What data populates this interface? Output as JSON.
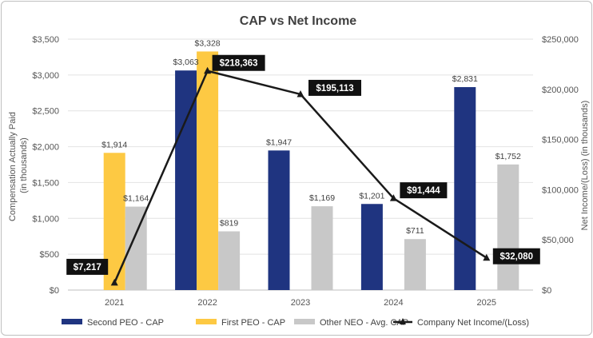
{
  "chart_data": {
    "type": "bar",
    "title": "CAP vs Net Income",
    "categories": [
      "2021",
      "2022",
      "2023",
      "2024",
      "2025"
    ],
    "ylabel_left": "Compensation Actually Paid (in thousands)",
    "ylabel_right": "Net Income/(Loss) (in thousands)",
    "ylim_left": [
      0,
      3500
    ],
    "ylim_right": [
      0,
      250000
    ],
    "yticks_left": [
      "$0",
      "$500",
      "$1,000",
      "$1,500",
      "$2,000",
      "$2,500",
      "$3,000",
      "$3,500"
    ],
    "yticks_right": [
      "$0",
      "$50,000",
      "$100,000",
      "$150,000",
      "$200,000",
      "$250,000"
    ],
    "grid": true,
    "legend_position": "bottom",
    "series": [
      {
        "name": "Second PEO - CAP",
        "type": "bar",
        "axis": "left",
        "color": "#1f3480",
        "values": [
          null,
          3063,
          1947,
          1201,
          2831
        ],
        "labels": [
          "",
          "$3,063",
          "$1,947",
          "$1,201",
          "$2,831"
        ]
      },
      {
        "name": "First PEO - CAP",
        "type": "bar",
        "axis": "left",
        "color": "#fdc943",
        "values": [
          1914,
          3328,
          null,
          null,
          null
        ],
        "labels": [
          "$1,914",
          "$3,328",
          "",
          "",
          ""
        ]
      },
      {
        "name": "Other NEO - Avg. CAP",
        "type": "bar",
        "axis": "left",
        "color": "#c8c8c8",
        "values": [
          1164,
          819,
          1169,
          711,
          1752
        ],
        "labels": [
          "$1,164",
          "$819",
          "$1,169",
          "$711",
          "$1,752"
        ]
      },
      {
        "name": "Company Net Income/(Loss)",
        "type": "line",
        "axis": "right",
        "color": "#1a1a1a",
        "values": [
          7217,
          218363,
          195113,
          91444,
          32080
        ],
        "labels": [
          "$7,217",
          "$218,363",
          "$195,113",
          "$91,444",
          "$32,080"
        ]
      }
    ]
  }
}
